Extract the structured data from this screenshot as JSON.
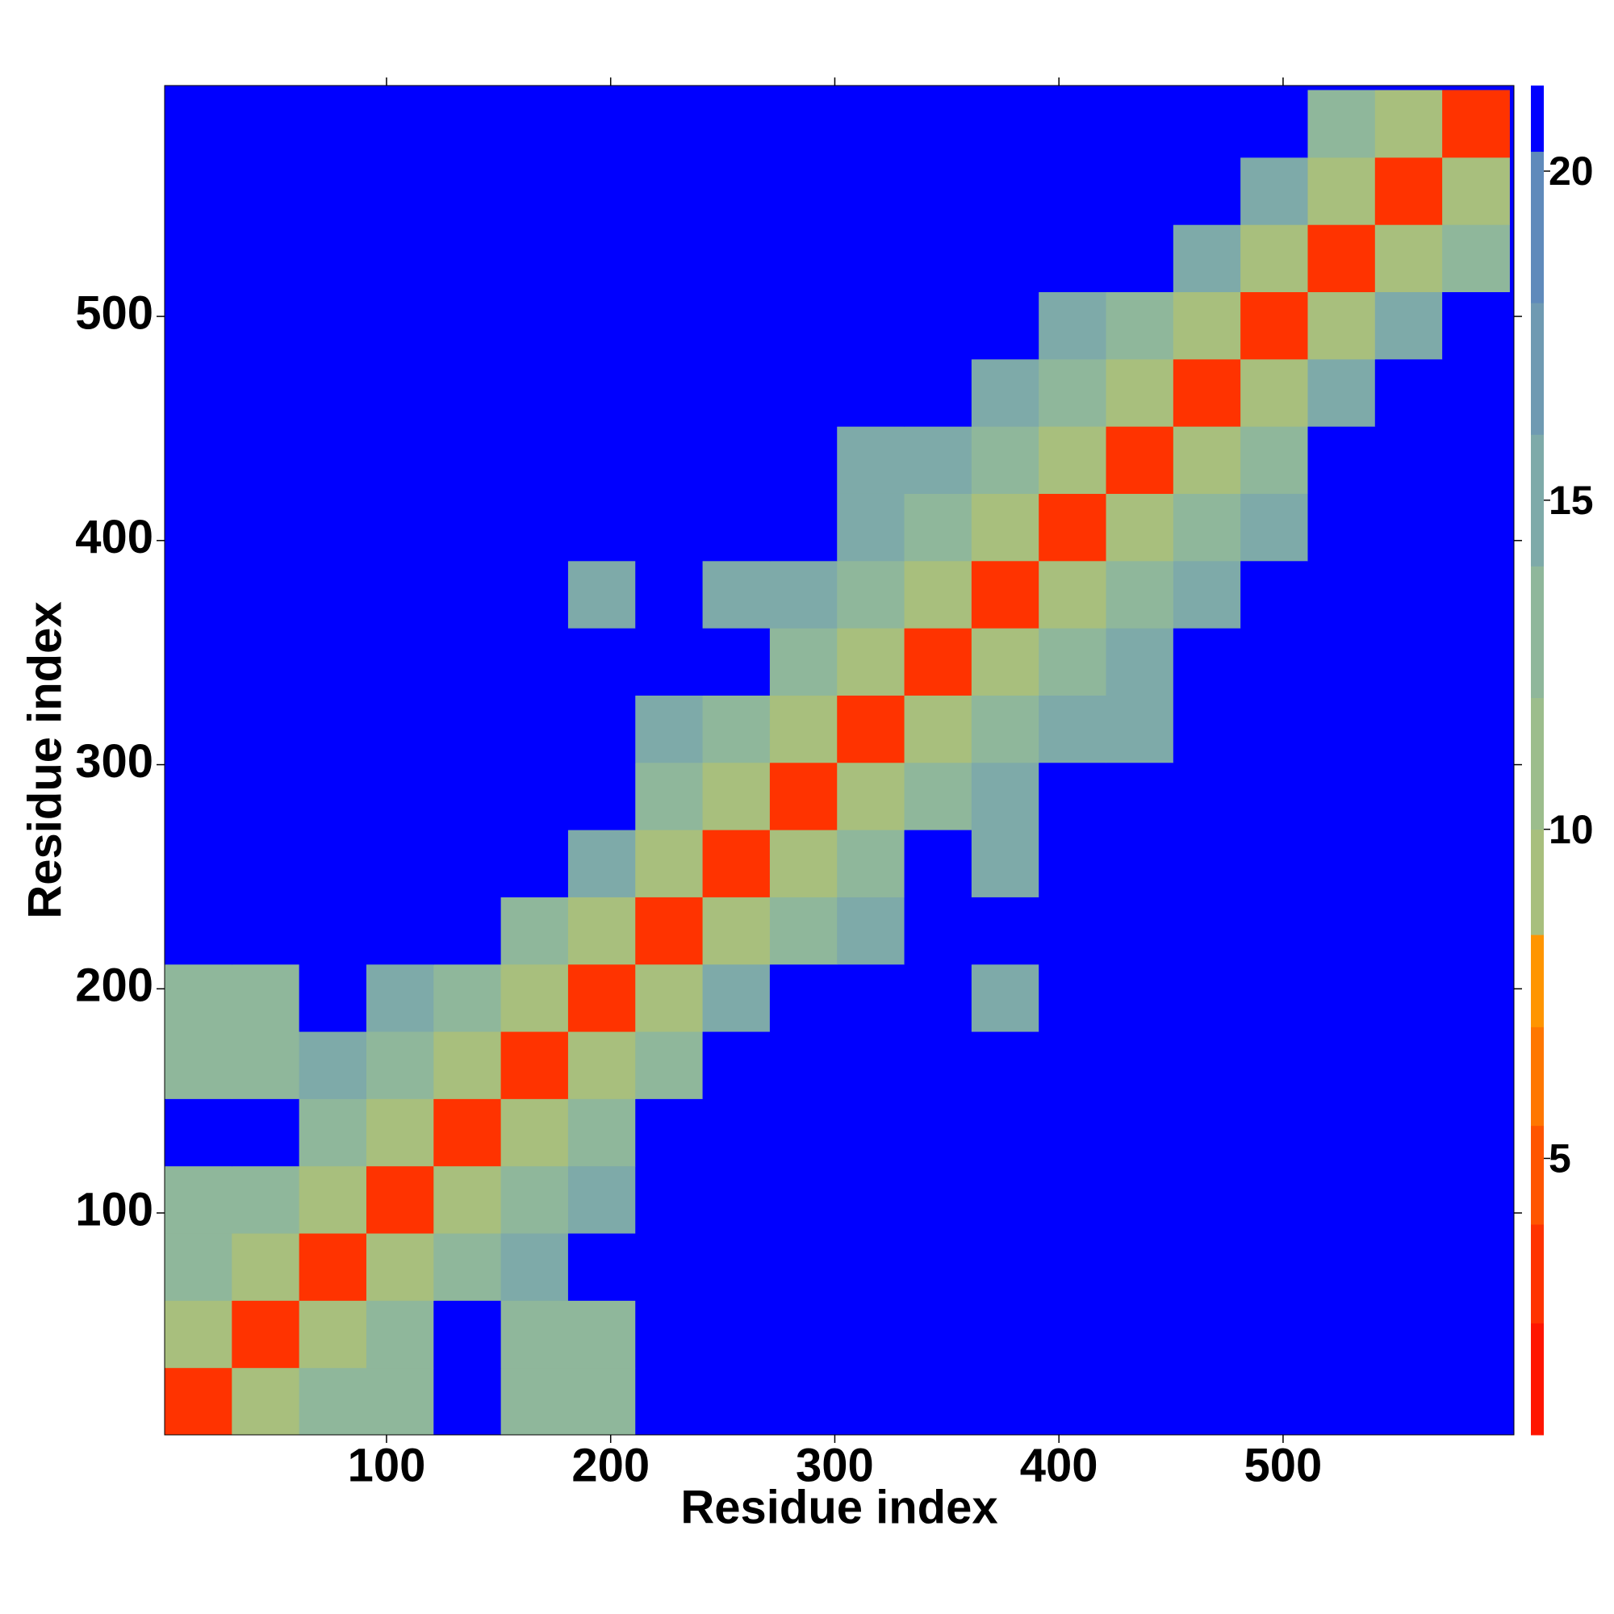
{
  "chart_data": {
    "type": "heatmap",
    "x_label": "Residue index",
    "y_label": "Residue index",
    "xlim": [
      1,
      603
    ],
    "ylim": [
      1,
      603
    ],
    "xticks": [
      100,
      200,
      300,
      400,
      500
    ],
    "yticks": [
      100,
      200,
      300,
      400,
      500
    ],
    "bins": [
      1,
      31,
      61,
      91,
      121,
      151,
      181,
      211,
      241,
      271,
      301,
      331,
      361,
      391,
      421,
      451,
      481,
      511,
      541,
      571,
      601
    ],
    "z": [
      [
        3,
        9,
        12,
        12,
        21,
        13,
        13,
        21,
        21,
        21,
        21,
        21,
        21,
        21,
        21,
        21,
        21,
        21,
        21,
        21
      ],
      [
        9,
        3,
        9,
        12,
        21,
        13,
        13,
        21,
        21,
        21,
        21,
        21,
        21,
        21,
        21,
        21,
        21,
        21,
        21,
        21
      ],
      [
        12,
        9,
        3,
        9,
        12,
        14,
        21,
        21,
        21,
        21,
        21,
        21,
        21,
        21,
        21,
        21,
        21,
        21,
        21,
        21
      ],
      [
        12,
        12,
        9,
        3,
        9,
        13,
        14,
        21,
        21,
        21,
        21,
        21,
        21,
        21,
        21,
        21,
        21,
        21,
        21,
        21
      ],
      [
        21,
        21,
        12,
        9,
        3,
        9,
        12,
        21,
        21,
        21,
        21,
        21,
        21,
        21,
        21,
        21,
        21,
        21,
        21,
        21
      ],
      [
        13,
        13,
        14,
        13,
        9,
        3,
        9,
        13,
        21,
        21,
        21,
        21,
        21,
        21,
        21,
        21,
        21,
        21,
        21,
        21
      ],
      [
        13,
        13,
        21,
        14,
        12,
        9,
        3,
        9,
        14,
        21,
        21,
        21,
        15,
        21,
        21,
        21,
        21,
        21,
        21,
        21
      ],
      [
        21,
        21,
        21,
        21,
        21,
        13,
        9,
        3,
        9,
        12,
        14,
        21,
        21,
        21,
        21,
        21,
        21,
        21,
        21,
        21
      ],
      [
        21,
        21,
        21,
        21,
        21,
        21,
        14,
        9,
        3,
        9,
        12,
        21,
        14,
        21,
        21,
        21,
        21,
        21,
        21,
        21
      ],
      [
        21,
        21,
        21,
        21,
        21,
        21,
        21,
        12,
        9,
        3,
        9,
        13,
        15,
        21,
        21,
        21,
        21,
        21,
        21,
        21
      ],
      [
        21,
        21,
        21,
        21,
        21,
        21,
        21,
        14,
        12,
        9,
        3,
        9,
        13,
        14,
        15,
        21,
        21,
        21,
        21,
        21
      ],
      [
        21,
        21,
        21,
        21,
        21,
        21,
        21,
        21,
        21,
        13,
        9,
        3,
        9,
        13,
        14,
        21,
        21,
        21,
        21,
        21
      ],
      [
        21,
        21,
        21,
        21,
        21,
        21,
        15,
        21,
        14,
        15,
        13,
        9,
        3,
        9,
        12,
        14,
        21,
        21,
        21,
        21
      ],
      [
        21,
        21,
        21,
        21,
        21,
        21,
        21,
        21,
        21,
        21,
        14,
        13,
        9,
        3,
        9,
        12,
        14,
        21,
        21,
        21
      ],
      [
        21,
        21,
        21,
        21,
        21,
        21,
        21,
        21,
        21,
        21,
        15,
        14,
        12,
        9,
        3,
        9,
        12,
        21,
        21,
        21
      ],
      [
        21,
        21,
        21,
        21,
        21,
        21,
        21,
        21,
        21,
        21,
        21,
        21,
        14,
        12,
        9,
        3,
        9,
        14,
        21,
        21
      ],
      [
        21,
        21,
        21,
        21,
        21,
        21,
        21,
        21,
        21,
        21,
        21,
        21,
        21,
        14,
        12,
        9,
        3,
        9,
        15,
        21
      ],
      [
        21,
        21,
        21,
        21,
        21,
        21,
        21,
        21,
        21,
        21,
        21,
        21,
        21,
        21,
        21,
        14,
        9,
        3,
        9,
        12
      ],
      [
        21,
        21,
        21,
        21,
        21,
        21,
        21,
        21,
        21,
        21,
        21,
        21,
        21,
        21,
        21,
        21,
        15,
        9,
        3,
        9
      ],
      [
        21,
        21,
        21,
        21,
        21,
        21,
        21,
        21,
        21,
        21,
        21,
        21,
        21,
        21,
        21,
        21,
        21,
        12,
        9,
        3
      ]
    ],
    "zlim": [
      0.8,
      21.3
    ],
    "colorbar_ticks": [
      5,
      10,
      15,
      20
    ],
    "colorscale": [
      {
        "value": 0.8,
        "color": "#ff1500"
      },
      {
        "value": 2.5,
        "color": "#ff3300"
      },
      {
        "value": 4,
        "color": "#ff5500"
      },
      {
        "value": 5.5,
        "color": "#ff7700"
      },
      {
        "value": 7,
        "color": "#ff9500"
      },
      {
        "value": 8.4,
        "color": "#a8bf7d"
      },
      {
        "value": 10,
        "color": "#9cbd8c"
      },
      {
        "value": 12,
        "color": "#8fb79b"
      },
      {
        "value": 14,
        "color": "#7eaaa9"
      },
      {
        "value": 16,
        "color": "#6f9ab2"
      },
      {
        "value": 18,
        "color": "#5f8abb"
      },
      {
        "value": 20.3,
        "color": "#0000ff"
      }
    ]
  }
}
